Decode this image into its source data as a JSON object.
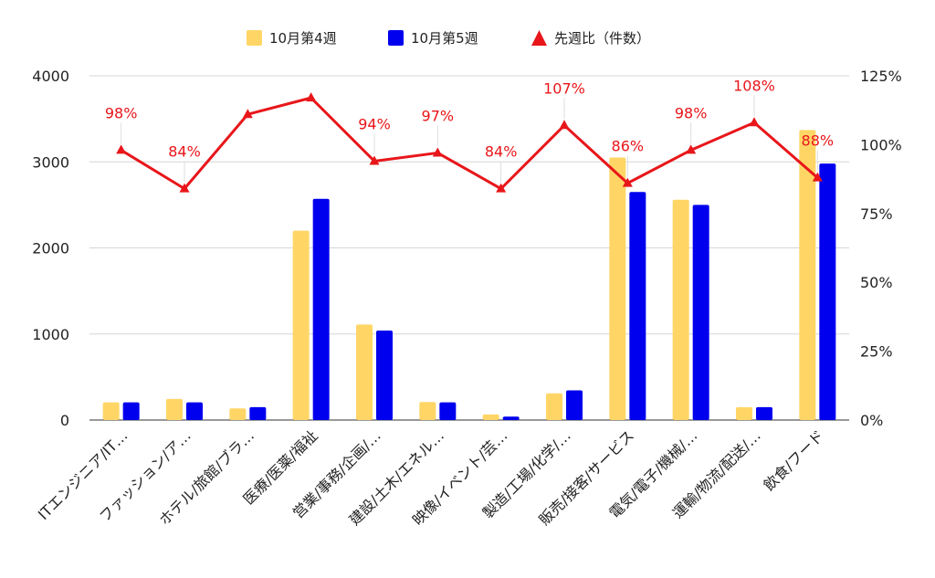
{
  "chart_data": {
    "type": "bar",
    "categories": [
      "ITエンジニア/IT…",
      "ファッション/ア…",
      "ホテル/旅館/ブラ…",
      "医療/医薬/福祉",
      "営業/事務/企画/…",
      "建設/土木/エネル…",
      "映像/イベント/芸…",
      "製造/工場/化学/…",
      "販売/接客/サービス",
      "電気/電子/機械/…",
      "運輸/物流/配送/…",
      "飲食/フード"
    ],
    "series": [
      {
        "name": "10月第4週",
        "type": "bar",
        "axis": "left",
        "values": [
          205,
          245,
          135,
          2200,
          1110,
          210,
          65,
          310,
          3050,
          2560,
          150,
          3370
        ]
      },
      {
        "name": "10月第5週",
        "type": "bar",
        "axis": "left",
        "values": [
          205,
          205,
          150,
          2570,
          1040,
          205,
          40,
          345,
          2650,
          2500,
          150,
          2980
        ]
      },
      {
        "name": "先週比（件数）",
        "type": "line",
        "axis": "right",
        "values": [
          98,
          84,
          111,
          117,
          94,
          97,
          84,
          107,
          86,
          98,
          108,
          88
        ],
        "labels": [
          "98%",
          "84%",
          "",
          "",
          "94%",
          "97%",
          "84%",
          "107%",
          "86%",
          "98%",
          "108%",
          "88%"
        ]
      }
    ],
    "y_left": {
      "min": 0,
      "max": 4000,
      "ticks": [
        0,
        1000,
        2000,
        3000,
        4000
      ]
    },
    "y_right": {
      "min": 0,
      "max": 125,
      "ticks": [
        "0%",
        "25%",
        "50%",
        "75%",
        "100%",
        "125%"
      ]
    },
    "grid": true,
    "legend_position": "top-center",
    "colors": {
      "week4": "#ffd666",
      "week5": "#0000ee",
      "ratio": "#e8161a",
      "grid": "#d6d6d6"
    }
  }
}
